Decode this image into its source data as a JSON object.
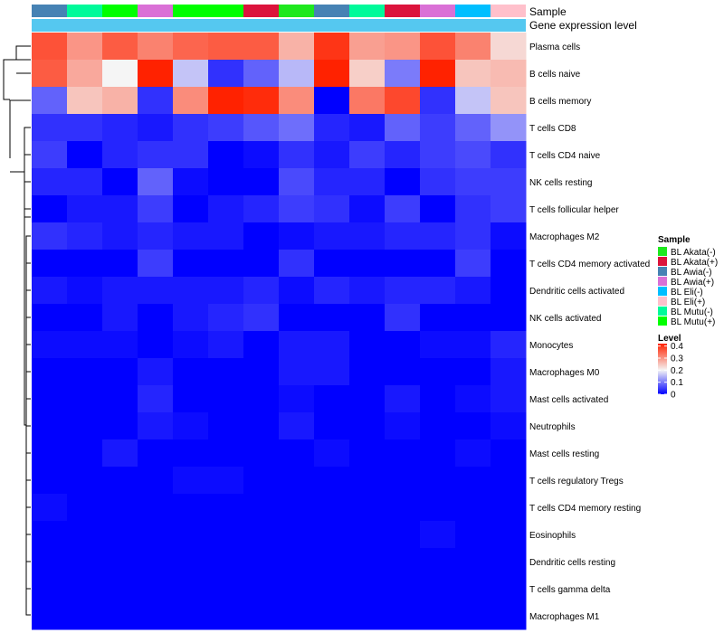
{
  "chart_data": {
    "type": "heatmap",
    "annotation_labels": [
      "Sample",
      "Gene expression level"
    ],
    "row_labels": [
      "Plasma cells",
      "B cells naive",
      "B cells memory",
      "T cells CD8",
      "T cells CD4 naive",
      "NK cells resting",
      "T cells follicular helper",
      "Macrophages M2",
      "T cells CD4 memory activated",
      "Dendritic cells activated",
      "NK cells activated",
      "Monocytes",
      "Macrophages M0",
      "Mast cells activated",
      "Neutrophils",
      "Mast cells resting",
      "T cells regulatory  Tregs",
      "T cells CD4 memory resting",
      "Eosinophils",
      "Dendritic cells resting",
      "T cells gamma delta",
      "Macrophages M1"
    ],
    "column_samples": [
      "BL Awia(-)",
      "BL Mutu(-)",
      "BL Mutu(+)",
      "BL Awia(+)",
      "BL Mutu(+)",
      "BL Mutu(+)",
      "BL Akata(+)",
      "BL Akata(-)",
      "BL Awia(-)",
      "BL Mutu(-)",
      "BL Akata(+)",
      "BL Awia(+)",
      "BL Eli(-)",
      "BL Eli(+)"
    ],
    "values": [
      [
        0.37,
        0.3,
        0.36,
        0.32,
        0.35,
        0.36,
        0.36,
        0.27,
        0.4,
        0.29,
        0.3,
        0.37,
        0.32,
        0.23
      ],
      [
        0.36,
        0.28,
        0.2,
        0.43,
        0.16,
        0.04,
        0.08,
        0.15,
        0.43,
        0.24,
        0.1,
        0.43,
        0.25,
        0.26
      ],
      [
        0.08,
        0.25,
        0.27,
        0.04,
        0.31,
        0.42,
        0.41,
        0.31,
        0.0,
        0.33,
        0.38,
        0.04,
        0.16,
        0.25
      ],
      [
        0.04,
        0.04,
        0.03,
        0.02,
        0.04,
        0.05,
        0.07,
        0.09,
        0.03,
        0.02,
        0.08,
        0.05,
        0.08,
        0.12
      ],
      [
        0.05,
        0.0,
        0.03,
        0.04,
        0.04,
        0.0,
        0.01,
        0.04,
        0.02,
        0.05,
        0.03,
        0.05,
        0.06,
        0.04
      ],
      [
        0.03,
        0.03,
        0.0,
        0.08,
        0.01,
        0.0,
        0.0,
        0.06,
        0.03,
        0.03,
        0.0,
        0.04,
        0.05,
        0.05
      ],
      [
        0.0,
        0.02,
        0.02,
        0.05,
        0.0,
        0.02,
        0.03,
        0.05,
        0.04,
        0.01,
        0.05,
        0.0,
        0.04,
        0.05
      ],
      [
        0.04,
        0.03,
        0.02,
        0.03,
        0.02,
        0.02,
        0.0,
        0.01,
        0.02,
        0.02,
        0.03,
        0.03,
        0.04,
        0.01
      ],
      [
        0.0,
        0.0,
        0.0,
        0.05,
        0.0,
        0.0,
        0.0,
        0.04,
        0.0,
        0.0,
        0.0,
        0.0,
        0.05,
        0.0
      ],
      [
        0.02,
        0.01,
        0.02,
        0.02,
        0.02,
        0.02,
        0.03,
        0.01,
        0.03,
        0.02,
        0.03,
        0.03,
        0.02,
        0.0
      ],
      [
        0.0,
        0.0,
        0.02,
        0.0,
        0.02,
        0.03,
        0.04,
        0.0,
        0.0,
        0.0,
        0.04,
        0.0,
        0.0,
        0.0
      ],
      [
        0.01,
        0.01,
        0.01,
        0.0,
        0.01,
        0.02,
        0.0,
        0.02,
        0.02,
        0.0,
        0.0,
        0.01,
        0.01,
        0.03
      ],
      [
        0.0,
        0.0,
        0.0,
        0.02,
        0.0,
        0.0,
        0.0,
        0.02,
        0.02,
        0.0,
        0.0,
        0.0,
        0.0,
        0.02
      ],
      [
        0.0,
        0.0,
        0.0,
        0.03,
        0.0,
        0.0,
        0.0,
        0.01,
        0.0,
        0.0,
        0.02,
        0.0,
        0.01,
        0.02
      ],
      [
        0.0,
        0.0,
        0.0,
        0.02,
        0.01,
        0.0,
        0.0,
        0.02,
        0.0,
        0.0,
        0.01,
        0.0,
        0.0,
        0.01
      ],
      [
        0.0,
        0.0,
        0.02,
        0.0,
        0.0,
        0.0,
        0.0,
        0.0,
        0.01,
        0.0,
        0.0,
        0.0,
        0.01,
        0.0
      ],
      [
        0.0,
        0.0,
        0.0,
        0.0,
        0.01,
        0.01,
        0.0,
        0.0,
        0.0,
        0.0,
        0.0,
        0.0,
        0.0,
        0.0
      ],
      [
        0.01,
        0.0,
        0.0,
        0.0,
        0.0,
        0.0,
        0.0,
        0.0,
        0.0,
        0.0,
        0.0,
        0.0,
        0.0,
        0.0
      ],
      [
        0.0,
        0.0,
        0.0,
        0.0,
        0.0,
        0.0,
        0.0,
        0.0,
        0.0,
        0.0,
        0.0,
        0.01,
        0.0,
        0.0
      ],
      [
        0.0,
        0.0,
        0.0,
        0.0,
        0.0,
        0.0,
        0.0,
        0.0,
        0.0,
        0.0,
        0.0,
        0.0,
        0.0,
        0.0
      ],
      [
        0.0,
        0.0,
        0.0,
        0.0,
        0.0,
        0.0,
        0.0,
        0.0,
        0.0,
        0.0,
        0.0,
        0.0,
        0.0,
        0.0
      ],
      [
        0.0,
        0.0,
        0.0,
        0.0,
        0.0,
        0.0,
        0.0,
        0.0,
        0.0,
        0.0,
        0.0,
        0.0,
        0.0,
        0.0
      ]
    ],
    "sample_legend": {
      "title": "Sample",
      "entries": [
        {
          "label": "BL Akata(-)",
          "color": "#1ee81e"
        },
        {
          "label": "BL Akata(+)",
          "color": "#dc143c"
        },
        {
          "label": "BL Awia(-)",
          "color": "#4682b4"
        },
        {
          "label": "BL Awia(+)",
          "color": "#da70d6"
        },
        {
          "label": "BL Eli(-)",
          "color": "#00bfff"
        },
        {
          "label": "BL Eli(+)",
          "color": "#ffc0cb"
        },
        {
          "label": "BL Mutu(-)",
          "color": "#00fa9a"
        },
        {
          "label": "BL Mutu(+)",
          "color": "#00ff00"
        }
      ]
    },
    "level_legend": {
      "title": "Level",
      "ticks": [
        "0.4",
        "0.3",
        "0.2",
        "0.1",
        "0"
      ],
      "range": [
        0,
        0.42
      ]
    },
    "color_scale": {
      "low": "#0000ff",
      "mid": "#f5f5f5",
      "high": "#ff2200",
      "mid_value": 0.2
    },
    "expression_bar_color": "#55c8f0",
    "dendrogram": "left"
  }
}
